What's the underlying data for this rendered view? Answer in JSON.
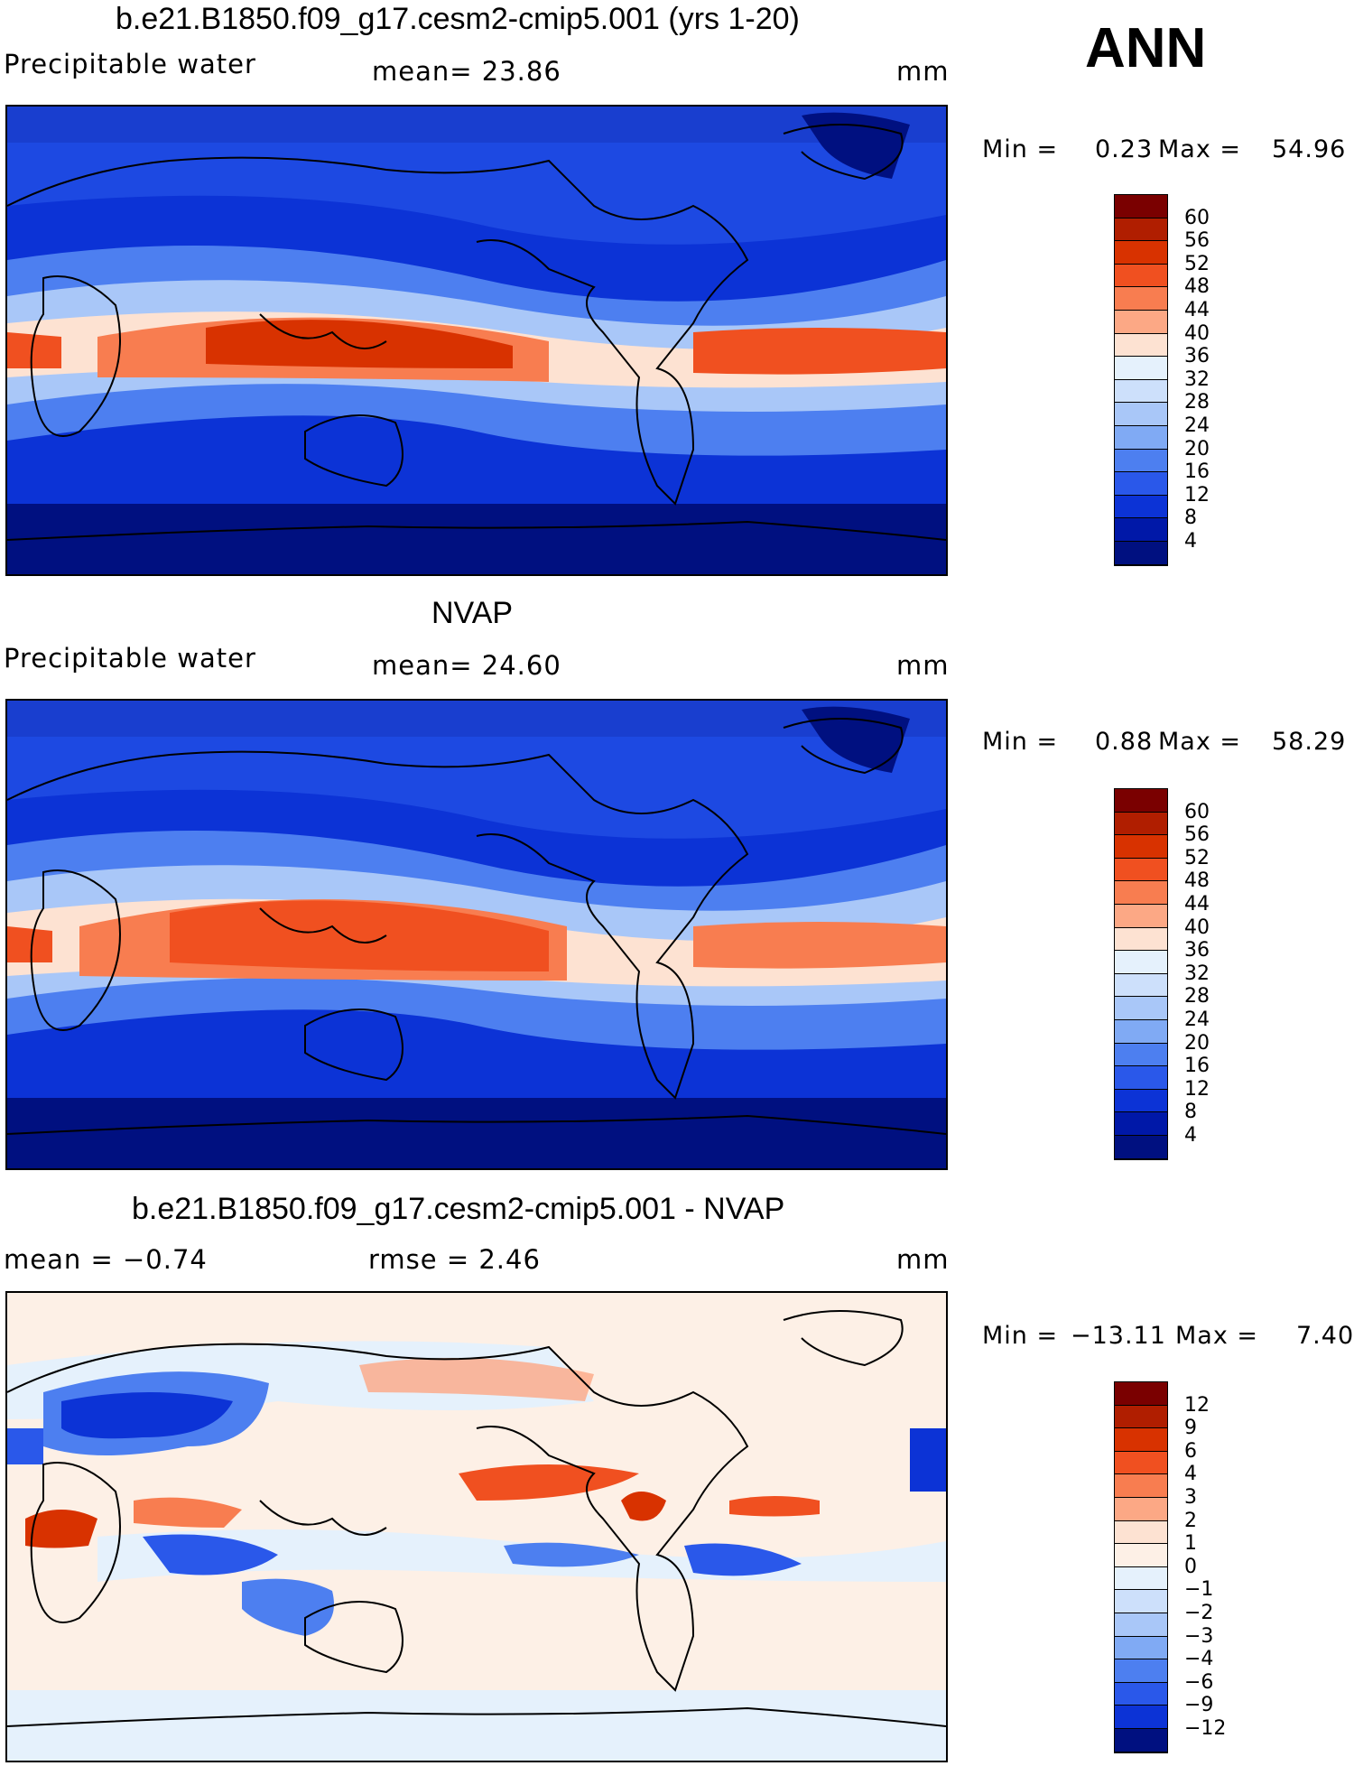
{
  "ann_label": "ANN",
  "panels": [
    {
      "title": "b.e21.B1850.f09_g17.cesm2-cmip5.001 (yrs 1-20)",
      "left_label": "Precipitable  water",
      "mid_label": "mean=   23.86",
      "units": "mm",
      "min_label": "Min  =",
      "min_value": "0.23",
      "max_label": "Max  =",
      "max_value": "54.96",
      "colorbar": {
        "labels": [
          "60",
          "56",
          "52",
          "48",
          "44",
          "40",
          "36",
          "32",
          "28",
          "24",
          "20",
          "16",
          "12",
          "8",
          "4"
        ],
        "colors": [
          "#7a0000",
          "#b01e00",
          "#d83200",
          "#f05020",
          "#f87d50",
          "#fca885",
          "#fde2d2",
          "#e5f1fc",
          "#cde0fb",
          "#a9c7f8",
          "#80aaf4",
          "#4d7ff0",
          "#2a58ea",
          "#0c33d6",
          "#0018a8",
          "#001080"
        ]
      }
    },
    {
      "title": "NVAP",
      "left_label": "Precipitable  water",
      "mid_label": "mean=   24.60",
      "units": "mm",
      "min_label": "Min  =",
      "min_value": "0.88",
      "max_label": "Max  =",
      "max_value": "58.29",
      "colorbar": {
        "labels": [
          "60",
          "56",
          "52",
          "48",
          "44",
          "40",
          "36",
          "32",
          "28",
          "24",
          "20",
          "16",
          "12",
          "8",
          "4"
        ],
        "colors": [
          "#7a0000",
          "#b01e00",
          "#d83200",
          "#f05020",
          "#f87d50",
          "#fca885",
          "#fde2d2",
          "#e5f1fc",
          "#cde0fb",
          "#a9c7f8",
          "#80aaf4",
          "#4d7ff0",
          "#2a58ea",
          "#0c33d6",
          "#0018a8",
          "#001080"
        ]
      }
    },
    {
      "title": "b.e21.B1850.f09_g17.cesm2-cmip5.001 - NVAP",
      "left_label": "mean  =    −0.74",
      "mid_label": "rmse  =     2.46",
      "units": "mm",
      "min_label": "Min  =",
      "min_value": "−13.11",
      "max_label": "Max  =",
      "max_value": "7.40",
      "colorbar": {
        "labels": [
          "12",
          "9",
          "6",
          "4",
          "3",
          "2",
          "1",
          "0",
          "−1",
          "−2",
          "−3",
          "−4",
          "−6",
          "−9",
          "−12"
        ],
        "colors": [
          "#7a0000",
          "#b01e00",
          "#d83200",
          "#f05020",
          "#f87d50",
          "#fca885",
          "#fde2d2",
          "#fdf0e6",
          "#e5f1fc",
          "#cde0fb",
          "#a9c7f8",
          "#80aaf4",
          "#4d7ff0",
          "#2a58ea",
          "#0c33d6",
          "#001080"
        ]
      }
    }
  ]
}
